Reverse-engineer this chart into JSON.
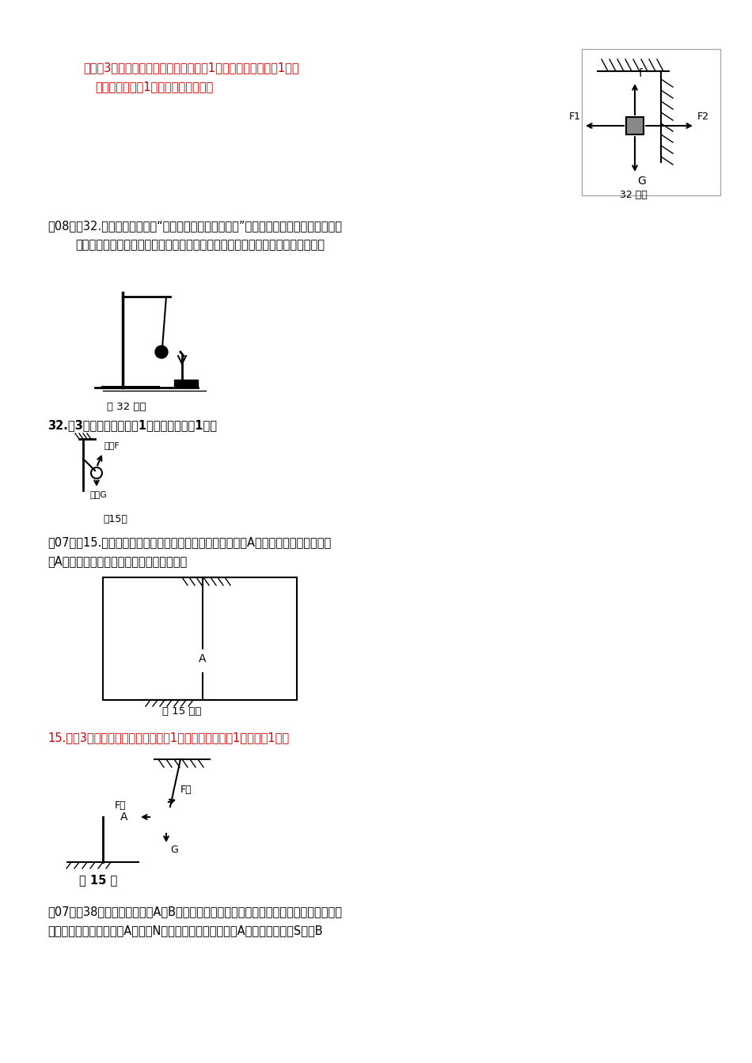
{
  "bg_color": "#ffffff",
  "text_color": "#000000",
  "red_color": "#cc0000",
  "page_width": 9.5,
  "page_height": 13.44,
  "section1": {
    "answer_text_line1": "解：（3分）如图所示（重力、吸引力共1分，摩擦力和弹力各1分，",
    "answer_text_line2": "错画一个力，扠1分，直到扣完为止）",
    "label_32": "32 题图"
  },
  "section2": {
    "question_text": "（08调）32.如图所示，在探究“声音是由物体振动产生的”实验中，将音又紧靠悬线下的轻",
    "question_text2": "质小球，敏击音叉，发现轻质小球被弹开。作出图中轻质小球此时的受力示意图。",
    "fig_label": "第 32 题图",
    "answer_label": "32.（3分）重力、拉力各1分，方向正确给1分。"
  },
  "section3": {
    "answer_label2": "笥15题",
    "question_text": "（07中）15.一根绳子系着一个泡漸小球，悬挂在一个带电体A右边，小球静止时与带电",
    "question_text2": "体A等高且不接触。请画出小球受力示意图。",
    "fig15_label": "第 15 题图"
  },
  "section4": {
    "answer_text": "15.　（3分）如图所示（小球状态了1分，重力、拉力共1分，引力1分）",
    "answer_label": "笯 15 题"
  },
  "section5": {
    "question_text": "（07调）38．如图甲所示的是A、B两个磁滑环套在玻璃管上研究磁悬浮的装置，乙是它的",
    "question_text2": "截面图，图中已经标出了A滑环的N极，请你分别在乙图中的A滑环上标出磁极S，在B"
  }
}
